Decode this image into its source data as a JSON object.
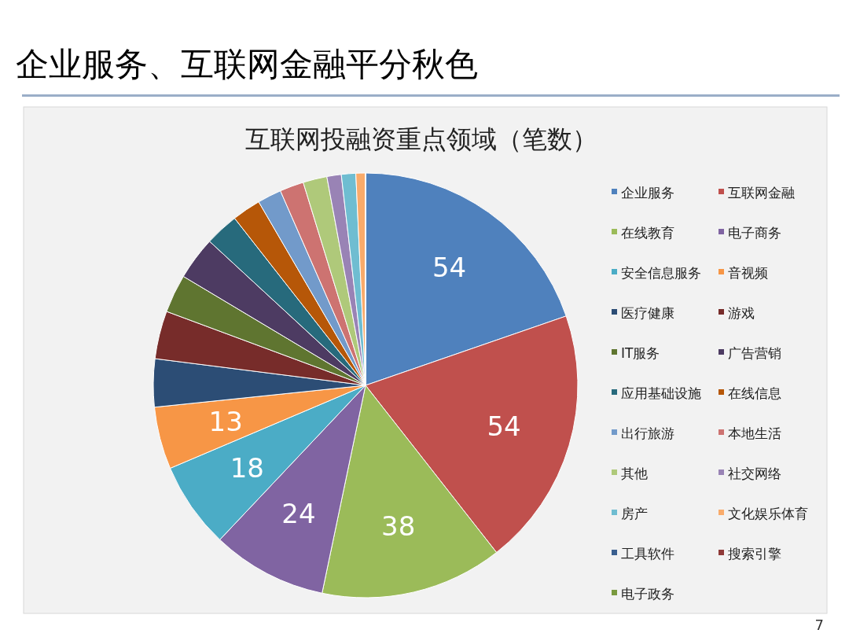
{
  "chart_data": {
    "type": "pie",
    "title": "企业服务、互联网金融平分秋色",
    "subtitle": "互联网投融资重点领域（笔数）",
    "categories": [
      "企业服务",
      "互联网金融",
      "在线教育",
      "电子商务",
      "安全信息服务",
      "音视频",
      "医疗健康",
      "游戏",
      "IT服务",
      "广告营销",
      "应用基础设施",
      "在线信息",
      "出行旅游",
      "本地生活",
      "其他",
      "社交网络",
      "房产",
      "文化娱乐体育",
      "工具软件",
      "搜索引擎",
      "电子政务"
    ],
    "values": [
      54,
      54,
      38,
      24,
      18,
      13,
      10,
      10,
      8,
      9,
      7,
      6,
      5,
      5,
      5,
      3,
      3,
      2,
      0,
      0,
      0
    ],
    "value_labels": [
      "54",
      "54",
      "38",
      "24",
      "18",
      "13",
      null,
      null,
      null,
      null,
      null,
      null,
      null,
      null,
      null,
      null,
      null,
      null,
      null,
      null,
      null
    ],
    "colors": [
      "#4f81bd",
      "#c0504d",
      "#9bbb59",
      "#8064a2",
      "#4bacc6",
      "#f79646",
      "#2c4d75",
      "#772c2a",
      "#5f7530",
      "#4d3b62",
      "#276a7c",
      "#b65708",
      "#729aca",
      "#cd7371",
      "#afc97a",
      "#9983b5",
      "#6fbdd1",
      "#f9ab6b",
      "#3a5f8f",
      "#8f3a38",
      "#7a9a3f"
    ],
    "legend": "right",
    "annotations": [
      "7"
    ]
  }
}
